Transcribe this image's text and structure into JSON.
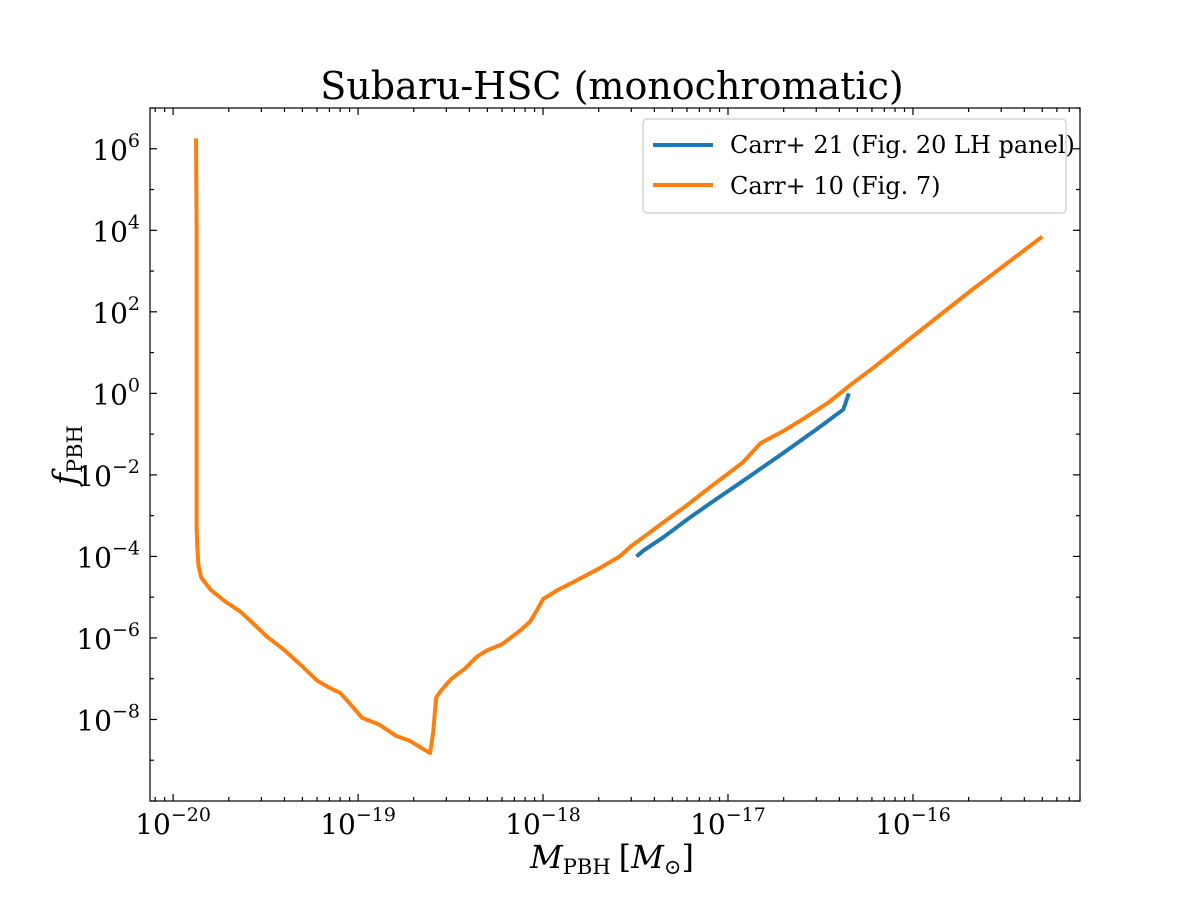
{
  "chart_data": {
    "type": "line",
    "title": "Subaru-HSC (monochromatic)",
    "xlabel": {
      "main": "M",
      "sub": "PBH",
      "unit_pre": "[",
      "unit_main": "M",
      "unit_sub": "⊙",
      "unit_post": "]"
    },
    "ylabel": {
      "main": "f",
      "sub": "PBH"
    },
    "xscale": "log",
    "yscale": "log",
    "xlim": [
      7.5e-21,
      8e-16
    ],
    "ylim": [
      1e-10,
      10000000.0
    ],
    "grid": false,
    "legend_position": "top-right",
    "xticks": [
      {
        "value": 1e-20,
        "base": "10",
        "exp": "−20"
      },
      {
        "value": 1e-19,
        "base": "10",
        "exp": "−19"
      },
      {
        "value": 1e-18,
        "base": "10",
        "exp": "−18"
      },
      {
        "value": 1e-17,
        "base": "10",
        "exp": "−17"
      },
      {
        "value": 1e-16,
        "base": "10",
        "exp": "−16"
      }
    ],
    "yticks": [
      {
        "value": 1e-08,
        "base": "10",
        "exp": "−8"
      },
      {
        "value": 1e-06,
        "base": "10",
        "exp": "−6"
      },
      {
        "value": 0.0001,
        "base": "10",
        "exp": "−4"
      },
      {
        "value": 0.01,
        "base": "10",
        "exp": "−2"
      },
      {
        "value": 1,
        "base": "10",
        "exp": "0"
      },
      {
        "value": 100,
        "base": "10",
        "exp": "2"
      },
      {
        "value": 10000,
        "base": "10",
        "exp": "4"
      },
      {
        "value": 1000000,
        "base": "10",
        "exp": "6"
      }
    ],
    "series": [
      {
        "name": "Carr+ 21 (Fig. 20 LH panel)",
        "color": "#1f77b4",
        "x": [
          3.2e-18,
          3.5e-18,
          4.5e-18,
          6e-18,
          8e-18,
          1.2e-17,
          2e-17,
          3e-17,
          4.2e-17,
          4.5e-17
        ],
        "y": [
          0.0001,
          0.00014,
          0.0003,
          0.0008,
          0.002,
          0.007,
          0.035,
          0.13,
          0.4,
          1.0
        ]
      },
      {
        "name": "Carr+ 10 (Fig. 7)",
        "color": "#ff7f0e",
        "x": [
          1.33e-20,
          1.34e-20,
          1.34e-20,
          1.35e-20,
          1.37e-20,
          1.42e-20,
          1.6e-20,
          1.9e-20,
          2.3e-20,
          2.7e-20,
          3.2e-20,
          4e-20,
          5e-20,
          6e-20,
          7e-20,
          8e-20,
          9e-20,
          1.05e-19,
          1.3e-19,
          1.6e-19,
          1.9e-19,
          2.2e-19,
          2.45e-19,
          2.55e-19,
          2.6e-19,
          2.65e-19,
          2.8e-19,
          3.2e-19,
          3.8e-19,
          4.4e-19,
          5e-19,
          6e-19,
          7.5e-19,
          8.5e-19,
          9.2e-19,
          1e-18,
          1.2e-18,
          1.5e-18,
          2e-18,
          2.6e-18,
          3e-18,
          3.5e-18,
          4.5e-18,
          6e-18,
          8e-18,
          1.2e-17,
          1.5e-17,
          2e-17,
          2.6e-17,
          3.5e-17,
          4.5e-17,
          6e-17,
          1e-16,
          2e-16,
          5e-16
        ],
        "y": [
          1800000.0,
          10000.0,
          0.0005,
          0.0002,
          6e-05,
          3e-05,
          1.5e-05,
          8e-06,
          4.5e-06,
          2.3e-06,
          1.1e-06,
          5e-07,
          2e-07,
          9e-08,
          6e-08,
          4.5e-08,
          2.5e-08,
          1.1e-08,
          7.5e-09,
          4e-09,
          3e-09,
          2e-09,
          1.5e-09,
          5e-09,
          1.5e-08,
          3.5e-08,
          5e-08,
          1e-07,
          1.8e-07,
          3.5e-07,
          5e-07,
          7e-07,
          1.5e-06,
          2.5e-06,
          4.5e-06,
          9e-06,
          1.5e-05,
          2.5e-05,
          5e-05,
          0.0001,
          0.00018,
          0.0003,
          0.0007,
          0.0018,
          0.005,
          0.02,
          0.06,
          0.12,
          0.25,
          0.6,
          1.5,
          4.0,
          25.0,
          300.0,
          7000.0
        ]
      }
    ]
  }
}
